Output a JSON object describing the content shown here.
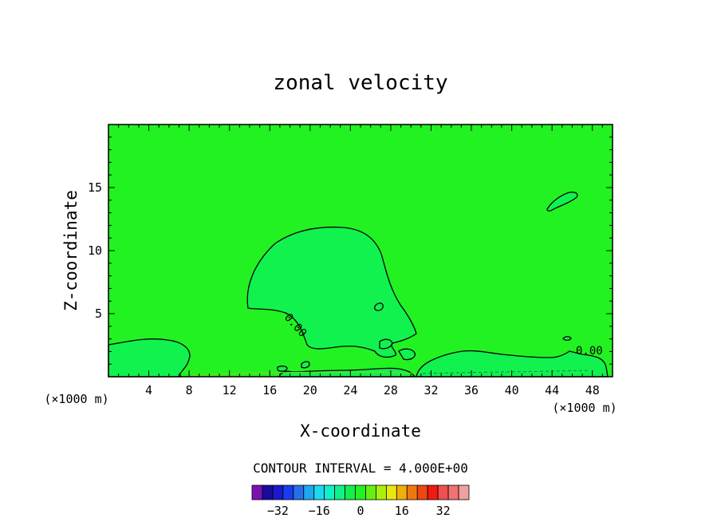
{
  "chart_data": {
    "type": "contour",
    "title": "zonal velocity",
    "xlabel": "X-coordinate",
    "ylabel": "Z-coordinate",
    "x_unit_label": "(×1000 m)",
    "x_unit_label_right": "(×1000 m)",
    "xlim": [
      0,
      50
    ],
    "ylim": [
      0,
      20
    ],
    "x_ticks": [
      4,
      8,
      12,
      16,
      20,
      24,
      28,
      32,
      36,
      40,
      44,
      48
    ],
    "x_tick_labels": [
      "4",
      "8",
      "12",
      "16",
      "20",
      "24",
      "28",
      "32",
      "36",
      "40",
      "44",
      "48"
    ],
    "y_ticks": [
      5,
      10,
      15
    ],
    "y_tick_labels": [
      "5",
      "10",
      "15"
    ],
    "contour_interval_text": "CONTOUR INTERVAL = 4.000E+00",
    "contour_labels": [
      "0.00",
      "0.00"
    ],
    "background_color": "#22f222",
    "region_color": "#11f24f",
    "colorbar": {
      "colors": [
        "#7a12b0",
        "#1a0a9c",
        "#1b19c9",
        "#1a3cf0",
        "#2470e8",
        "#1ea8f0",
        "#1ed8f0",
        "#12f0c8",
        "#12f08c",
        "#12f04e",
        "#22f222",
        "#66f012",
        "#aaf00e",
        "#e8e80e",
        "#f0b00c",
        "#f07810",
        "#f04612",
        "#f01a12",
        "#f05050",
        "#f07272",
        "#f0a0a0"
      ],
      "tick_values": [
        -32,
        -16,
        0,
        16,
        32
      ],
      "tick_labels": [
        "−32",
        "−16",
        "0",
        "16",
        "32"
      ]
    }
  }
}
